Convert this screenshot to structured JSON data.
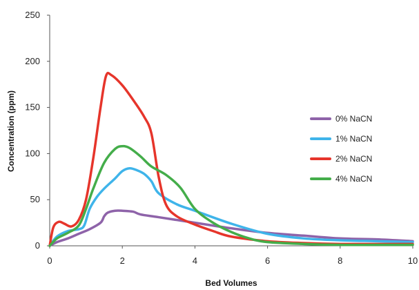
{
  "chart_data": {
    "type": "line",
    "title": "",
    "xlabel": "Bed Volumes",
    "ylabel": "Concentration (ppm)",
    "xlim": [
      0,
      10
    ],
    "ylim": [
      0,
      250
    ],
    "xticks": [
      0,
      2,
      4,
      6,
      8,
      10
    ],
    "yticks": [
      0,
      50,
      100,
      150,
      200,
      250
    ],
    "grid": false,
    "legend_position": "right",
    "series": [
      {
        "name": "0% NaCN",
        "color": "#8e63a9",
        "x": [
          0,
          0.2,
          0.5,
          0.8,
          1.1,
          1.4,
          1.5,
          1.6,
          1.8,
          2.0,
          2.3,
          2.5,
          3.0,
          4.0,
          5.0,
          6.0,
          7.0,
          8.0,
          9.0,
          10.0
        ],
        "y": [
          0,
          4,
          8,
          13,
          18,
          25,
          32,
          36,
          38,
          38,
          37,
          34,
          31,
          25,
          19,
          14,
          11,
          8,
          7,
          5
        ]
      },
      {
        "name": "1% NaCN",
        "color": "#3fb4ea",
        "x": [
          0,
          0.2,
          0.5,
          0.8,
          0.95,
          1.1,
          1.3,
          1.5,
          1.8,
          2.0,
          2.2,
          2.4,
          2.6,
          2.8,
          3.0,
          3.5,
          4.0,
          5.0,
          6.0,
          7.0,
          8.0,
          9.0,
          10.0
        ],
        "y": [
          0,
          10,
          16,
          18,
          22,
          40,
          53,
          62,
          73,
          81,
          84,
          82,
          78,
          70,
          57,
          45,
          38,
          24,
          13,
          8,
          6,
          5,
          4
        ]
      },
      {
        "name": "2% NaCN",
        "color": "#e6352b",
        "x": [
          0,
          0.1,
          0.25,
          0.4,
          0.6,
          0.8,
          1.0,
          1.2,
          1.4,
          1.55,
          1.7,
          2.0,
          2.3,
          2.6,
          2.8,
          3.0,
          3.2,
          3.5,
          4.0,
          4.5,
          5.0,
          6.0,
          7.0,
          8.0,
          9.0,
          10.0
        ],
        "y": [
          0,
          20,
          26,
          24,
          21,
          28,
          50,
          95,
          150,
          184,
          185,
          174,
          158,
          140,
          122,
          75,
          45,
          32,
          23,
          16,
          10,
          5,
          3,
          2,
          2,
          2
        ]
      },
      {
        "name": "4% NaCN",
        "color": "#44ad4a",
        "x": [
          0,
          0.2,
          0.5,
          0.8,
          1.0,
          1.2,
          1.5,
          1.8,
          2.0,
          2.2,
          2.5,
          2.8,
          3.2,
          3.6,
          4.0,
          4.5,
          5.0,
          5.5,
          6.0,
          7.0,
          8.0,
          9.0,
          10.0
        ],
        "y": [
          0,
          8,
          14,
          22,
          40,
          62,
          90,
          105,
          108,
          106,
          97,
          86,
          77,
          63,
          40,
          25,
          15,
          8,
          4,
          2,
          1,
          1,
          1
        ]
      }
    ]
  }
}
